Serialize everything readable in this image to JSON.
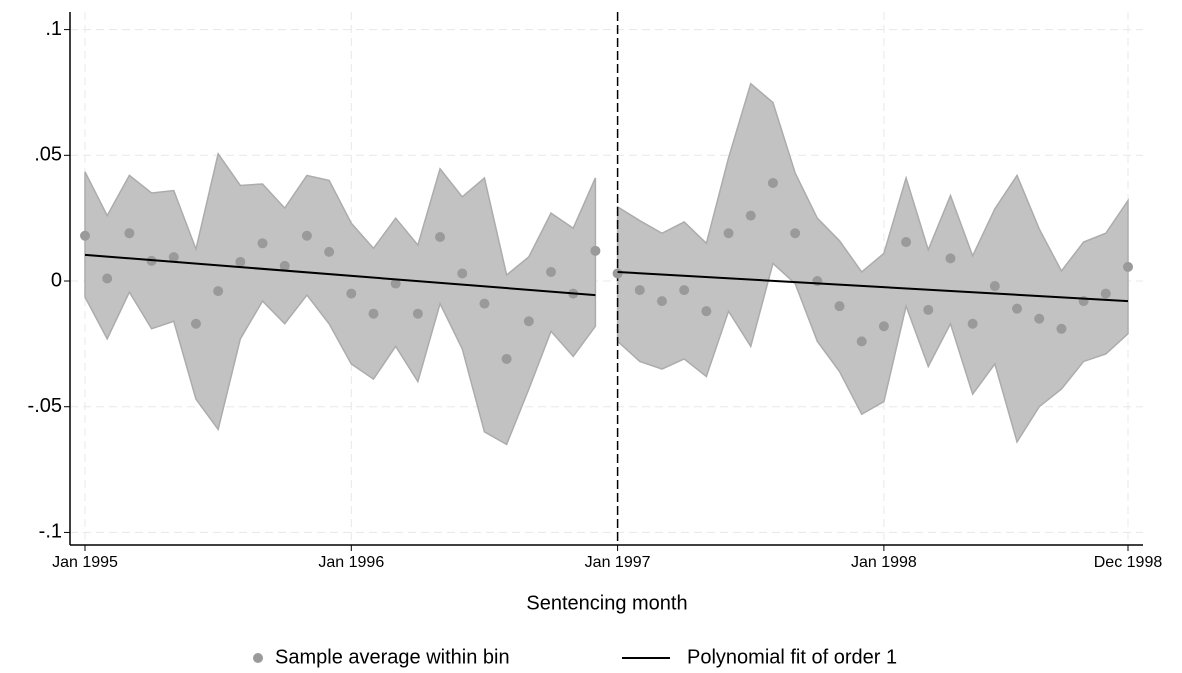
{
  "chart_data": {
    "type": "rdplot",
    "x_label": "Sentencing month",
    "x": [
      "1995-01",
      "1995-02",
      "1995-03",
      "1995-04",
      "1995-05",
      "1995-06",
      "1995-07",
      "1995-08",
      "1995-09",
      "1995-10",
      "1995-11",
      "1995-12",
      "1996-01",
      "1996-02",
      "1996-03",
      "1996-04",
      "1996-05",
      "1996-06",
      "1996-07",
      "1996-08",
      "1996-09",
      "1996-10",
      "1996-11",
      "1996-12",
      "1997-01",
      "1997-02",
      "1997-03",
      "1997-04",
      "1997-05",
      "1997-06",
      "1997-07",
      "1997-08",
      "1997-09",
      "1997-10",
      "1997-11",
      "1997-12",
      "1998-01",
      "1998-02",
      "1998-03",
      "1998-04",
      "1998-05",
      "1998-06",
      "1998-07",
      "1998-08",
      "1998-09",
      "1998-10",
      "1998-11",
      "1998-12"
    ],
    "cutoff": "1997-01",
    "series": [
      {
        "name": "Sample average within bin",
        "color": "#9a9a9a",
        "values": [
          0.018,
          0.001,
          0.019,
          0.008,
          0.0095,
          -0.017,
          -0.004,
          0.0076,
          0.015,
          0.006,
          0.018,
          0.0116,
          -0.005,
          -0.013,
          -0.001,
          -0.013,
          0.0175,
          0.003,
          -0.009,
          -0.031,
          -0.016,
          0.0036,
          -0.005,
          0.012,
          0.003,
          -0.0036,
          -0.008,
          -0.0036,
          -0.012,
          0.019,
          0.026,
          0.039,
          0.019,
          0.0,
          -0.01,
          -0.024,
          -0.018,
          0.0155,
          -0.0115,
          0.009,
          -0.017,
          -0.002,
          -0.011,
          -0.015,
          -0.019,
          -0.008,
          -0.005,
          0.0056
        ]
      },
      {
        "name": "Polynomial fit of order 1",
        "color": "#000000",
        "x": [
          "1995-01",
          "1996-12",
          "1997-01",
          "1998-12"
        ],
        "values": [
          0.0104,
          -0.0056,
          0.0036,
          -0.008
        ]
      }
    ],
    "band": {
      "color": "#c2c2c2",
      "upper": [
        0.0434,
        0.026,
        0.042,
        0.035,
        0.036,
        0.0127,
        0.0506,
        0.038,
        0.0386,
        0.029,
        0.042,
        0.04,
        0.023,
        0.013,
        0.025,
        0.0143,
        0.0446,
        0.0335,
        0.041,
        0.0024,
        0.0096,
        0.027,
        0.021,
        0.041,
        0.0295,
        0.024,
        0.019,
        0.0235,
        0.015,
        0.049,
        0.0785,
        0.071,
        0.043,
        0.025,
        0.016,
        0.0036,
        0.011,
        0.041,
        0.0124,
        0.034,
        0.01,
        0.0287,
        0.042,
        0.0207,
        0.004,
        0.0155,
        0.019,
        0.032
      ],
      "lower": [
        -0.0064,
        -0.023,
        -0.0044,
        -0.019,
        -0.016,
        -0.047,
        -0.059,
        -0.023,
        -0.008,
        -0.017,
        -0.0056,
        -0.017,
        -0.033,
        -0.039,
        -0.026,
        -0.04,
        -0.009,
        -0.027,
        -0.06,
        -0.065,
        -0.043,
        -0.02,
        -0.03,
        -0.018,
        -0.024,
        -0.032,
        -0.035,
        -0.031,
        -0.038,
        -0.012,
        -0.026,
        0.007,
        -0.001,
        -0.024,
        -0.036,
        -0.053,
        -0.048,
        -0.01,
        -0.034,
        -0.017,
        -0.045,
        -0.033,
        -0.064,
        -0.05,
        -0.043,
        -0.032,
        -0.029,
        -0.021
      ]
    },
    "xlim": [
      "1995-01",
      "1998-12"
    ],
    "xticks": [
      {
        "value": "1995-01",
        "label": "Jan 1995"
      },
      {
        "value": "1996-01",
        "label": "Jan 1996"
      },
      {
        "value": "1997-01",
        "label": "Jan 1997"
      },
      {
        "value": "1998-01",
        "label": "Jan 1998"
      },
      {
        "value": "1998-12",
        "label": "Dec 1998"
      }
    ],
    "ylim": [
      -0.105,
      0.107
    ],
    "yticks": [
      {
        "value": 0.1,
        "label": ".1"
      },
      {
        "value": 0.05,
        "label": ".05"
      },
      0,
      {
        "value": -0.05,
        "label": "-.05"
      },
      {
        "value": -0.1,
        "label": "-.1"
      }
    ],
    "grid": true
  }
}
